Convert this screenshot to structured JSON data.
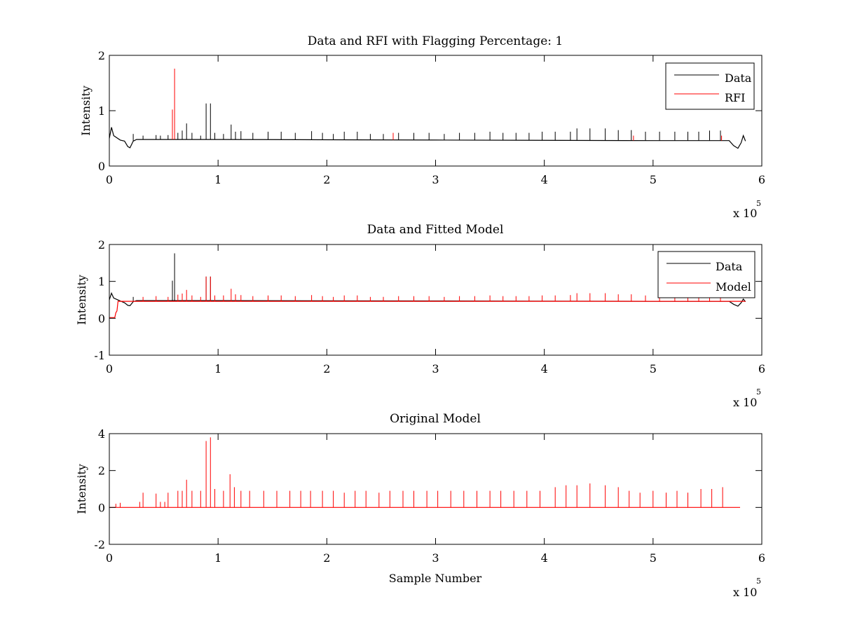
{
  "chart_data": [
    {
      "type": "line",
      "title": "Data and RFI with Flagging Percentage: 1",
      "ylabel": "Intensity",
      "xlabel": "",
      "xlim": [
        0,
        600000
      ],
      "ylim": [
        0,
        2
      ],
      "xticks": [
        0,
        1,
        2,
        3,
        4,
        5,
        6
      ],
      "yticks": [
        0,
        1,
        2
      ],
      "x_multiplier_label": "x 10",
      "x_multiplier_exp": "5",
      "legend": [
        "Data",
        "RFI"
      ],
      "legend_position": "top-right",
      "series": [
        {
          "name": "Data",
          "color": "#000000",
          "baseline": [
            [
              0,
              0.5
            ],
            [
              2000,
              0.7
            ],
            [
              4000,
              0.55
            ],
            [
              10000,
              0.47
            ],
            [
              14000,
              0.45
            ],
            [
              17000,
              0.35
            ],
            [
              19000,
              0.33
            ],
            [
              22000,
              0.45
            ],
            [
              25000,
              0.48
            ],
            [
              100000,
              0.48
            ],
            [
              300000,
              0.47
            ],
            [
              500000,
              0.46
            ],
            [
              570000,
              0.46
            ],
            [
              574000,
              0.37
            ],
            [
              578000,
              0.32
            ],
            [
              581000,
              0.42
            ],
            [
              583000,
              0.55
            ],
            [
              585000,
              0.45
            ]
          ],
          "spikes": [
            [
              22000,
              0.58
            ],
            [
              31000,
              0.55
            ],
            [
              43000,
              0.56
            ],
            [
              47000,
              0.55
            ],
            [
              54000,
              0.56
            ],
            [
              63000,
              0.6
            ],
            [
              67000,
              0.64
            ],
            [
              71000,
              0.77
            ],
            [
              76000,
              0.6
            ],
            [
              84000,
              0.55
            ],
            [
              89000,
              1.13
            ],
            [
              93000,
              1.13
            ],
            [
              97000,
              0.6
            ],
            [
              105000,
              0.58
            ],
            [
              112000,
              0.75
            ],
            [
              116000,
              0.62
            ],
            [
              121000,
              0.63
            ],
            [
              132000,
              0.6
            ],
            [
              146000,
              0.62
            ],
            [
              158000,
              0.62
            ],
            [
              171000,
              0.6
            ],
            [
              186000,
              0.63
            ],
            [
              196000,
              0.6
            ],
            [
              206000,
              0.58
            ],
            [
              216000,
              0.62
            ],
            [
              228000,
              0.62
            ],
            [
              240000,
              0.58
            ],
            [
              252000,
              0.58
            ],
            [
              266000,
              0.6
            ],
            [
              280000,
              0.6
            ],
            [
              294000,
              0.6
            ],
            [
              308000,
              0.58
            ],
            [
              322000,
              0.6
            ],
            [
              336000,
              0.6
            ],
            [
              350000,
              0.62
            ],
            [
              362000,
              0.6
            ],
            [
              374000,
              0.6
            ],
            [
              386000,
              0.6
            ],
            [
              398000,
              0.62
            ],
            [
              410000,
              0.62
            ],
            [
              424000,
              0.62
            ],
            [
              430000,
              0.68
            ],
            [
              442000,
              0.68
            ],
            [
              456000,
              0.68
            ],
            [
              468000,
              0.65
            ],
            [
              480000,
              0.65
            ],
            [
              493000,
              0.62
            ],
            [
              506000,
              0.62
            ],
            [
              520000,
              0.62
            ],
            [
              532000,
              0.62
            ],
            [
              542000,
              0.62
            ],
            [
              552000,
              0.64
            ],
            [
              562000,
              0.64
            ]
          ]
        },
        {
          "name": "RFI",
          "color": "#ff0000",
          "spikes": [
            [
              58000,
              1.02
            ],
            [
              60000,
              1.76
            ],
            [
              261000,
              0.6
            ],
            [
              482000,
              0.55
            ],
            [
              563000,
              0.55
            ]
          ]
        }
      ]
    },
    {
      "type": "line",
      "title": "Data and Fitted Model",
      "ylabel": "Intensity",
      "xlabel": "",
      "xlim": [
        0,
        600000
      ],
      "ylim": [
        -1,
        2
      ],
      "xticks": [
        0,
        1,
        2,
        3,
        4,
        5,
        6
      ],
      "yticks": [
        -1,
        0,
        1,
        2
      ],
      "x_multiplier_label": "x 10",
      "x_multiplier_exp": "5",
      "legend": [
        "Data",
        "Model"
      ],
      "legend_position": "top-right",
      "series": [
        {
          "name": "Data",
          "color": "#000000",
          "baseline": [
            [
              0,
              0.5
            ],
            [
              2000,
              0.68
            ],
            [
              4000,
              0.55
            ],
            [
              10000,
              0.47
            ],
            [
              14000,
              0.42
            ],
            [
              17000,
              0.35
            ],
            [
              19000,
              0.34
            ],
            [
              22000,
              0.45
            ],
            [
              25000,
              0.48
            ],
            [
              100000,
              0.48
            ],
            [
              300000,
              0.47
            ],
            [
              500000,
              0.46
            ],
            [
              570000,
              0.46
            ],
            [
              574000,
              0.38
            ],
            [
              578000,
              0.33
            ],
            [
              581000,
              0.42
            ],
            [
              583000,
              0.52
            ],
            [
              585000,
              0.45
            ]
          ],
          "spikes": [
            [
              22000,
              0.58
            ],
            [
              58000,
              1.02
            ],
            [
              60000,
              1.76
            ],
            [
              89000,
              1.13
            ],
            [
              93000,
              1.13
            ]
          ]
        },
        {
          "name": "Model",
          "color": "#ff0000",
          "baseline": [
            [
              0,
              0.02
            ],
            [
              5000,
              0.02
            ],
            [
              6000,
              0.15
            ],
            [
              7000,
              0.2
            ],
            [
              8000,
              0.46
            ],
            [
              100000,
              0.46
            ],
            [
              585000,
              0.46
            ]
          ],
          "spikes": [
            [
              31000,
              0.58
            ],
            [
              43000,
              0.6
            ],
            [
              54000,
              0.58
            ],
            [
              63000,
              0.64
            ],
            [
              67000,
              0.67
            ],
            [
              71000,
              0.77
            ],
            [
              76000,
              0.62
            ],
            [
              84000,
              0.58
            ],
            [
              89000,
              1.13
            ],
            [
              93000,
              1.13
            ],
            [
              97000,
              0.62
            ],
            [
              105000,
              0.62
            ],
            [
              112000,
              0.8
            ],
            [
              116000,
              0.65
            ],
            [
              121000,
              0.63
            ],
            [
              132000,
              0.6
            ],
            [
              146000,
              0.62
            ],
            [
              158000,
              0.62
            ],
            [
              171000,
              0.6
            ],
            [
              186000,
              0.63
            ],
            [
              196000,
              0.6
            ],
            [
              206000,
              0.58
            ],
            [
              216000,
              0.62
            ],
            [
              228000,
              0.62
            ],
            [
              240000,
              0.58
            ],
            [
              252000,
              0.58
            ],
            [
              266000,
              0.6
            ],
            [
              280000,
              0.6
            ],
            [
              294000,
              0.6
            ],
            [
              308000,
              0.58
            ],
            [
              322000,
              0.6
            ],
            [
              336000,
              0.6
            ],
            [
              350000,
              0.62
            ],
            [
              362000,
              0.6
            ],
            [
              374000,
              0.6
            ],
            [
              386000,
              0.6
            ],
            [
              398000,
              0.62
            ],
            [
              410000,
              0.62
            ],
            [
              424000,
              0.63
            ],
            [
              430000,
              0.68
            ],
            [
              442000,
              0.68
            ],
            [
              456000,
              0.68
            ],
            [
              468000,
              0.65
            ],
            [
              480000,
              0.65
            ],
            [
              493000,
              0.62
            ],
            [
              506000,
              0.62
            ],
            [
              520000,
              0.62
            ],
            [
              532000,
              0.62
            ],
            [
              542000,
              0.62
            ],
            [
              552000,
              0.64
            ],
            [
              562000,
              0.64
            ]
          ]
        }
      ]
    },
    {
      "type": "line",
      "title": "Original Model",
      "ylabel": "Intensity",
      "xlabel": "Sample Number",
      "xlim": [
        0,
        600000
      ],
      "ylim": [
        -2,
        4
      ],
      "xticks": [
        0,
        1,
        2,
        3,
        4,
        5,
        6
      ],
      "yticks": [
        -2,
        0,
        2,
        4
      ],
      "x_multiplier_label": "x 10",
      "x_multiplier_exp": "5",
      "legend": [],
      "series": [
        {
          "name": "",
          "color": "#ff0000",
          "baseline": [
            [
              0,
              0.0
            ],
            [
              580000,
              0.0
            ]
          ],
          "spikes": [
            [
              6000,
              0.2
            ],
            [
              10000,
              0.25
            ],
            [
              28000,
              0.3
            ],
            [
              31000,
              0.8
            ],
            [
              43000,
              0.75
            ],
            [
              47000,
              0.3
            ],
            [
              51000,
              0.3
            ],
            [
              54000,
              0.8
            ],
            [
              63000,
              0.9
            ],
            [
              67000,
              0.9
            ],
            [
              71000,
              1.5
            ],
            [
              76000,
              0.9
            ],
            [
              84000,
              0.9
            ],
            [
              89000,
              3.6
            ],
            [
              93000,
              3.8
            ],
            [
              97000,
              1.0
            ],
            [
              105000,
              0.9
            ],
            [
              111000,
              1.8
            ],
            [
              115000,
              1.1
            ],
            [
              121000,
              0.9
            ],
            [
              129000,
              0.9
            ],
            [
              142000,
              0.9
            ],
            [
              154000,
              0.9
            ],
            [
              166000,
              0.9
            ],
            [
              176000,
              0.9
            ],
            [
              185000,
              0.9
            ],
            [
              196000,
              0.9
            ],
            [
              206000,
              0.9
            ],
            [
              216000,
              0.8
            ],
            [
              226000,
              0.9
            ],
            [
              236000,
              0.9
            ],
            [
              248000,
              0.8
            ],
            [
              258000,
              0.9
            ],
            [
              270000,
              0.9
            ],
            [
              280000,
              0.9
            ],
            [
              292000,
              0.9
            ],
            [
              302000,
              0.9
            ],
            [
              314000,
              0.9
            ],
            [
              326000,
              0.9
            ],
            [
              338000,
              0.9
            ],
            [
              350000,
              0.9
            ],
            [
              360000,
              0.9
            ],
            [
              372000,
              0.9
            ],
            [
              384000,
              0.9
            ],
            [
              396000,
              0.9
            ],
            [
              410000,
              1.1
            ],
            [
              420000,
              1.2
            ],
            [
              430000,
              1.2
            ],
            [
              442000,
              1.3
            ],
            [
              456000,
              1.2
            ],
            [
              468000,
              1.1
            ],
            [
              478000,
              0.9
            ],
            [
              488000,
              0.8
            ],
            [
              500000,
              0.9
            ],
            [
              512000,
              0.8
            ],
            [
              522000,
              0.9
            ],
            [
              532000,
              0.8
            ],
            [
              544000,
              1.0
            ],
            [
              554000,
              1.0
            ],
            [
              564000,
              1.1
            ]
          ]
        }
      ]
    }
  ]
}
